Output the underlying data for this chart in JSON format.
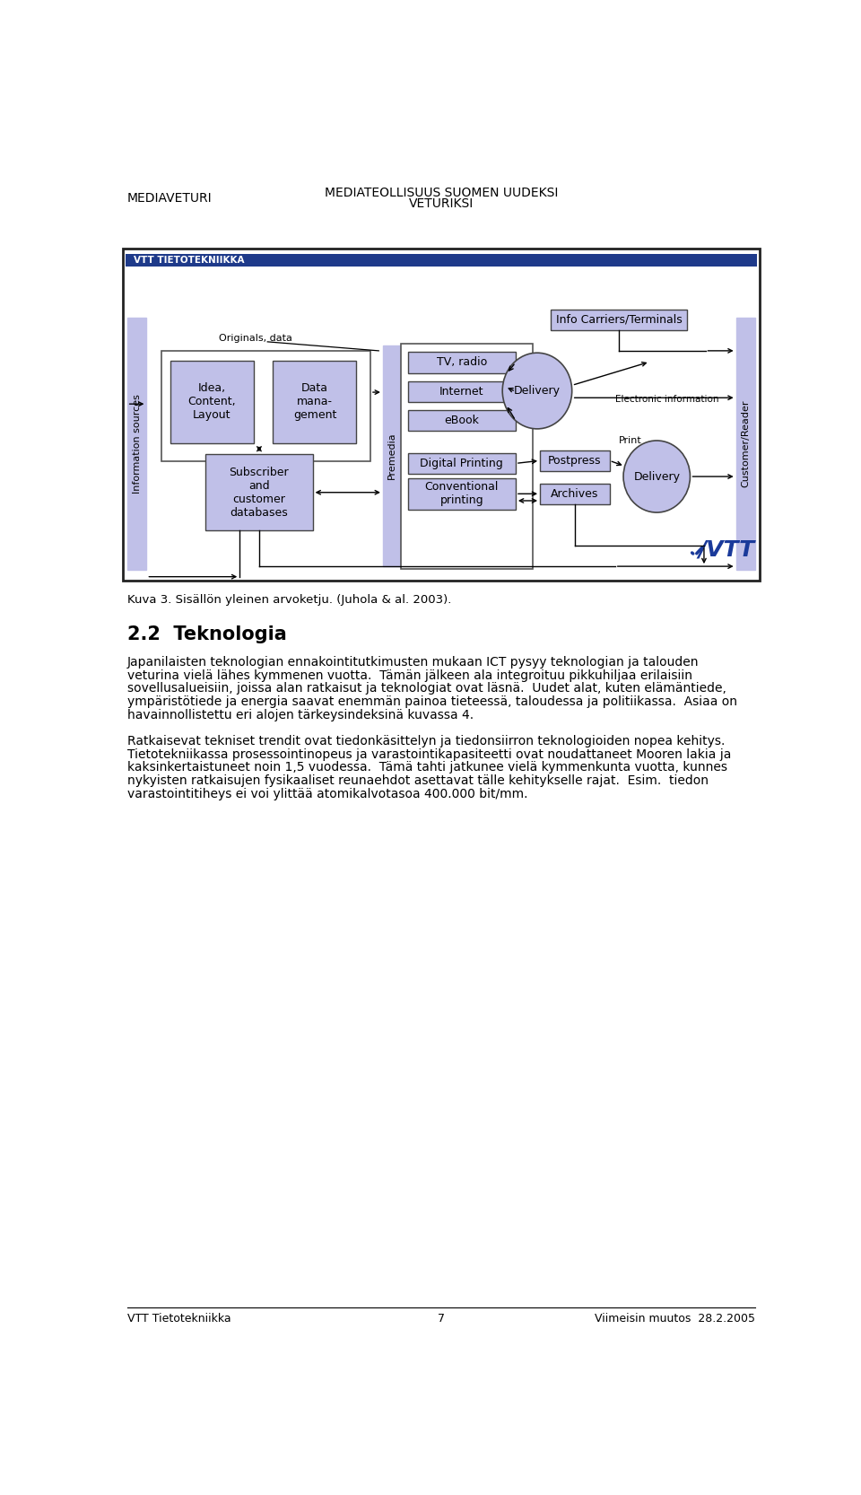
{
  "header_left": "MEDIAVETURI",
  "header_center_line1": "MEDIATEOLLISUUS SUOMEN UUDEKSI",
  "header_center_line2": "VETURIKSI",
  "footer_left": "VTT Tietotekniikka",
  "footer_center": "7",
  "footer_right": "Viimeisin muutos  28.2.2005",
  "vtt_label": "VTT TIETOTEKNIIKKA",
  "vtt_bar_color": "#1e3a8a",
  "box_fill": "#c0c0e8",
  "box_edge": "#444444",
  "caption": "Kuva 3. Sisällön yleinen arvoketju. (Juhola & al. 2003).",
  "section_title": "2.2  Teknologia",
  "body_para1_lines": [
    "Japanilaisten teknologian ennakointitutkimusten mukaan ICT pysyy teknologian ja talouden",
    "veturina vielä lähes kymmenen vuotta.  Tämän jälkeen ala integroituu pikkuhiljaa erilaisiin",
    "sovellusalueisiin, joissa alan ratkaisut ja teknologiat ovat läsnä.  Uudet alat, kuten elämäntiede,",
    "ympäristötiede ja energia saavat enemmän painoa tieteessä, taloudessa ja politiikassa.  Asiaa on",
    "havainnollistettu eri alojen tärkeysindeksinä kuvassa 4."
  ],
  "body_para2_lines": [
    "Ratkaisevat tekniset trendit ovat tiedonkäsittelyn ja tiedonsiirron teknologioiden nopea kehitys.",
    "Tietotekniikassa prosessointinopeus ja varastointikapasiteetti ovat noudattaneet Mooren lakia ja",
    "kaksinkertaistuneet noin 1,5 vuodessa.  Tämä tahti jatkunee vielä kymmenkunta vuotta, kunnes",
    "nykyisten ratkaisujen fysikaaliset reunaehdot asettavat tälle kehitykselle rajat.  Esim.  tiedon",
    "varastointitiheys ei voi ylittää atomikalvotasoa 400.000 bit/mm."
  ]
}
